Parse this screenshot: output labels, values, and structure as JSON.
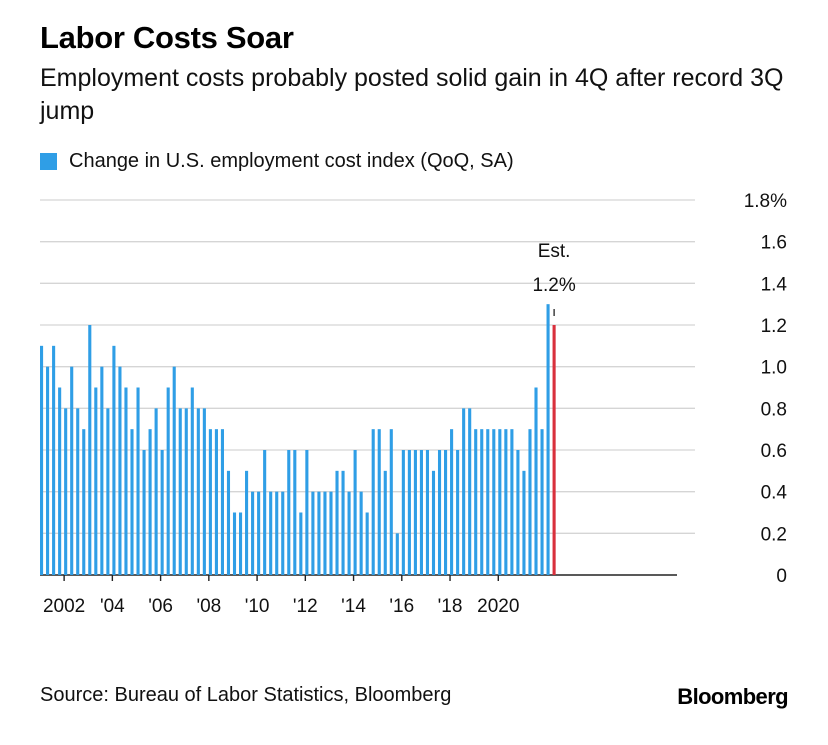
{
  "header": {
    "title": "Labor Costs Soar",
    "subtitle": "Employment costs probably posted solid gain in 4Q after record 3Q jump"
  },
  "legend": {
    "label": "Change in U.S. employment cost index (QoQ, SA)"
  },
  "footer": {
    "source": "Source: Bureau of Labor Statistics, Bloomberg",
    "brand": "Bloomberg"
  },
  "colors": {
    "bar": "#2f9ee6",
    "estimate": "#d9303c",
    "grid": "#d5d5d5",
    "axis": "#222222"
  },
  "chart_data": {
    "type": "bar",
    "title": "Labor Costs Soar",
    "subtitle": "Employment costs probably posted solid gain in 4Q after record 3Q jump",
    "series": [
      {
        "name": "Change in U.S. employment cost index (QoQ, SA)",
        "start": "2001 Q1",
        "frequency": "quarterly",
        "values": [
          1.1,
          1.0,
          1.1,
          0.9,
          0.8,
          1.0,
          0.8,
          0.7,
          1.2,
          0.9,
          1.0,
          0.8,
          1.1,
          1.0,
          0.9,
          0.7,
          0.9,
          0.6,
          0.7,
          0.8,
          0.6,
          0.9,
          1.0,
          0.8,
          0.8,
          0.9,
          0.8,
          0.8,
          0.7,
          0.7,
          0.7,
          0.5,
          0.3,
          0.3,
          0.5,
          0.4,
          0.4,
          0.6,
          0.4,
          0.4,
          0.4,
          0.6,
          0.6,
          0.3,
          0.6,
          0.4,
          0.4,
          0.4,
          0.4,
          0.5,
          0.5,
          0.4,
          0.6,
          0.4,
          0.3,
          0.7,
          0.7,
          0.5,
          0.7,
          0.2,
          0.6,
          0.6,
          0.6,
          0.6,
          0.6,
          0.5,
          0.6,
          0.6,
          0.7,
          0.6,
          0.8,
          0.8,
          0.7,
          0.7,
          0.7,
          0.7,
          0.7,
          0.7,
          0.7,
          0.6,
          0.5,
          0.7,
          0.9,
          0.7,
          1.3
        ]
      },
      {
        "name": "Est.",
        "x": "2021 Q4",
        "values": [
          1.2
        ]
      }
    ],
    "annotation": {
      "line1": "Est.",
      "line2": "1.2%"
    },
    "x_ticks": [
      {
        "year": 2002,
        "label": "2002"
      },
      {
        "year": 2004,
        "label": "'04"
      },
      {
        "year": 2006,
        "label": "'06"
      },
      {
        "year": 2008,
        "label": "'08"
      },
      {
        "year": 2010,
        "label": "'10"
      },
      {
        "year": 2012,
        "label": "'12"
      },
      {
        "year": 2014,
        "label": "'14"
      },
      {
        "year": 2016,
        "label": "'16"
      },
      {
        "year": 2018,
        "label": "'18"
      },
      {
        "year": 2020,
        "label": "2020"
      }
    ],
    "y_ticks": [
      {
        "value": 0,
        "label": "0"
      },
      {
        "value": 0.2,
        "label": "0.2"
      },
      {
        "value": 0.4,
        "label": "0.4"
      },
      {
        "value": 0.6,
        "label": "0.6"
      },
      {
        "value": 0.8,
        "label": "0.8"
      },
      {
        "value": 1.0,
        "label": "1.0"
      },
      {
        "value": 1.2,
        "label": "1.2"
      },
      {
        "value": 1.4,
        "label": "1.4"
      },
      {
        "value": 1.6,
        "label": "1.6"
      },
      {
        "value": 1.8,
        "label": "1.8%"
      }
    ],
    "ylim": [
      0,
      1.8
    ],
    "grid": true,
    "y_axis_side": "right",
    "legend_position": "top-left"
  }
}
